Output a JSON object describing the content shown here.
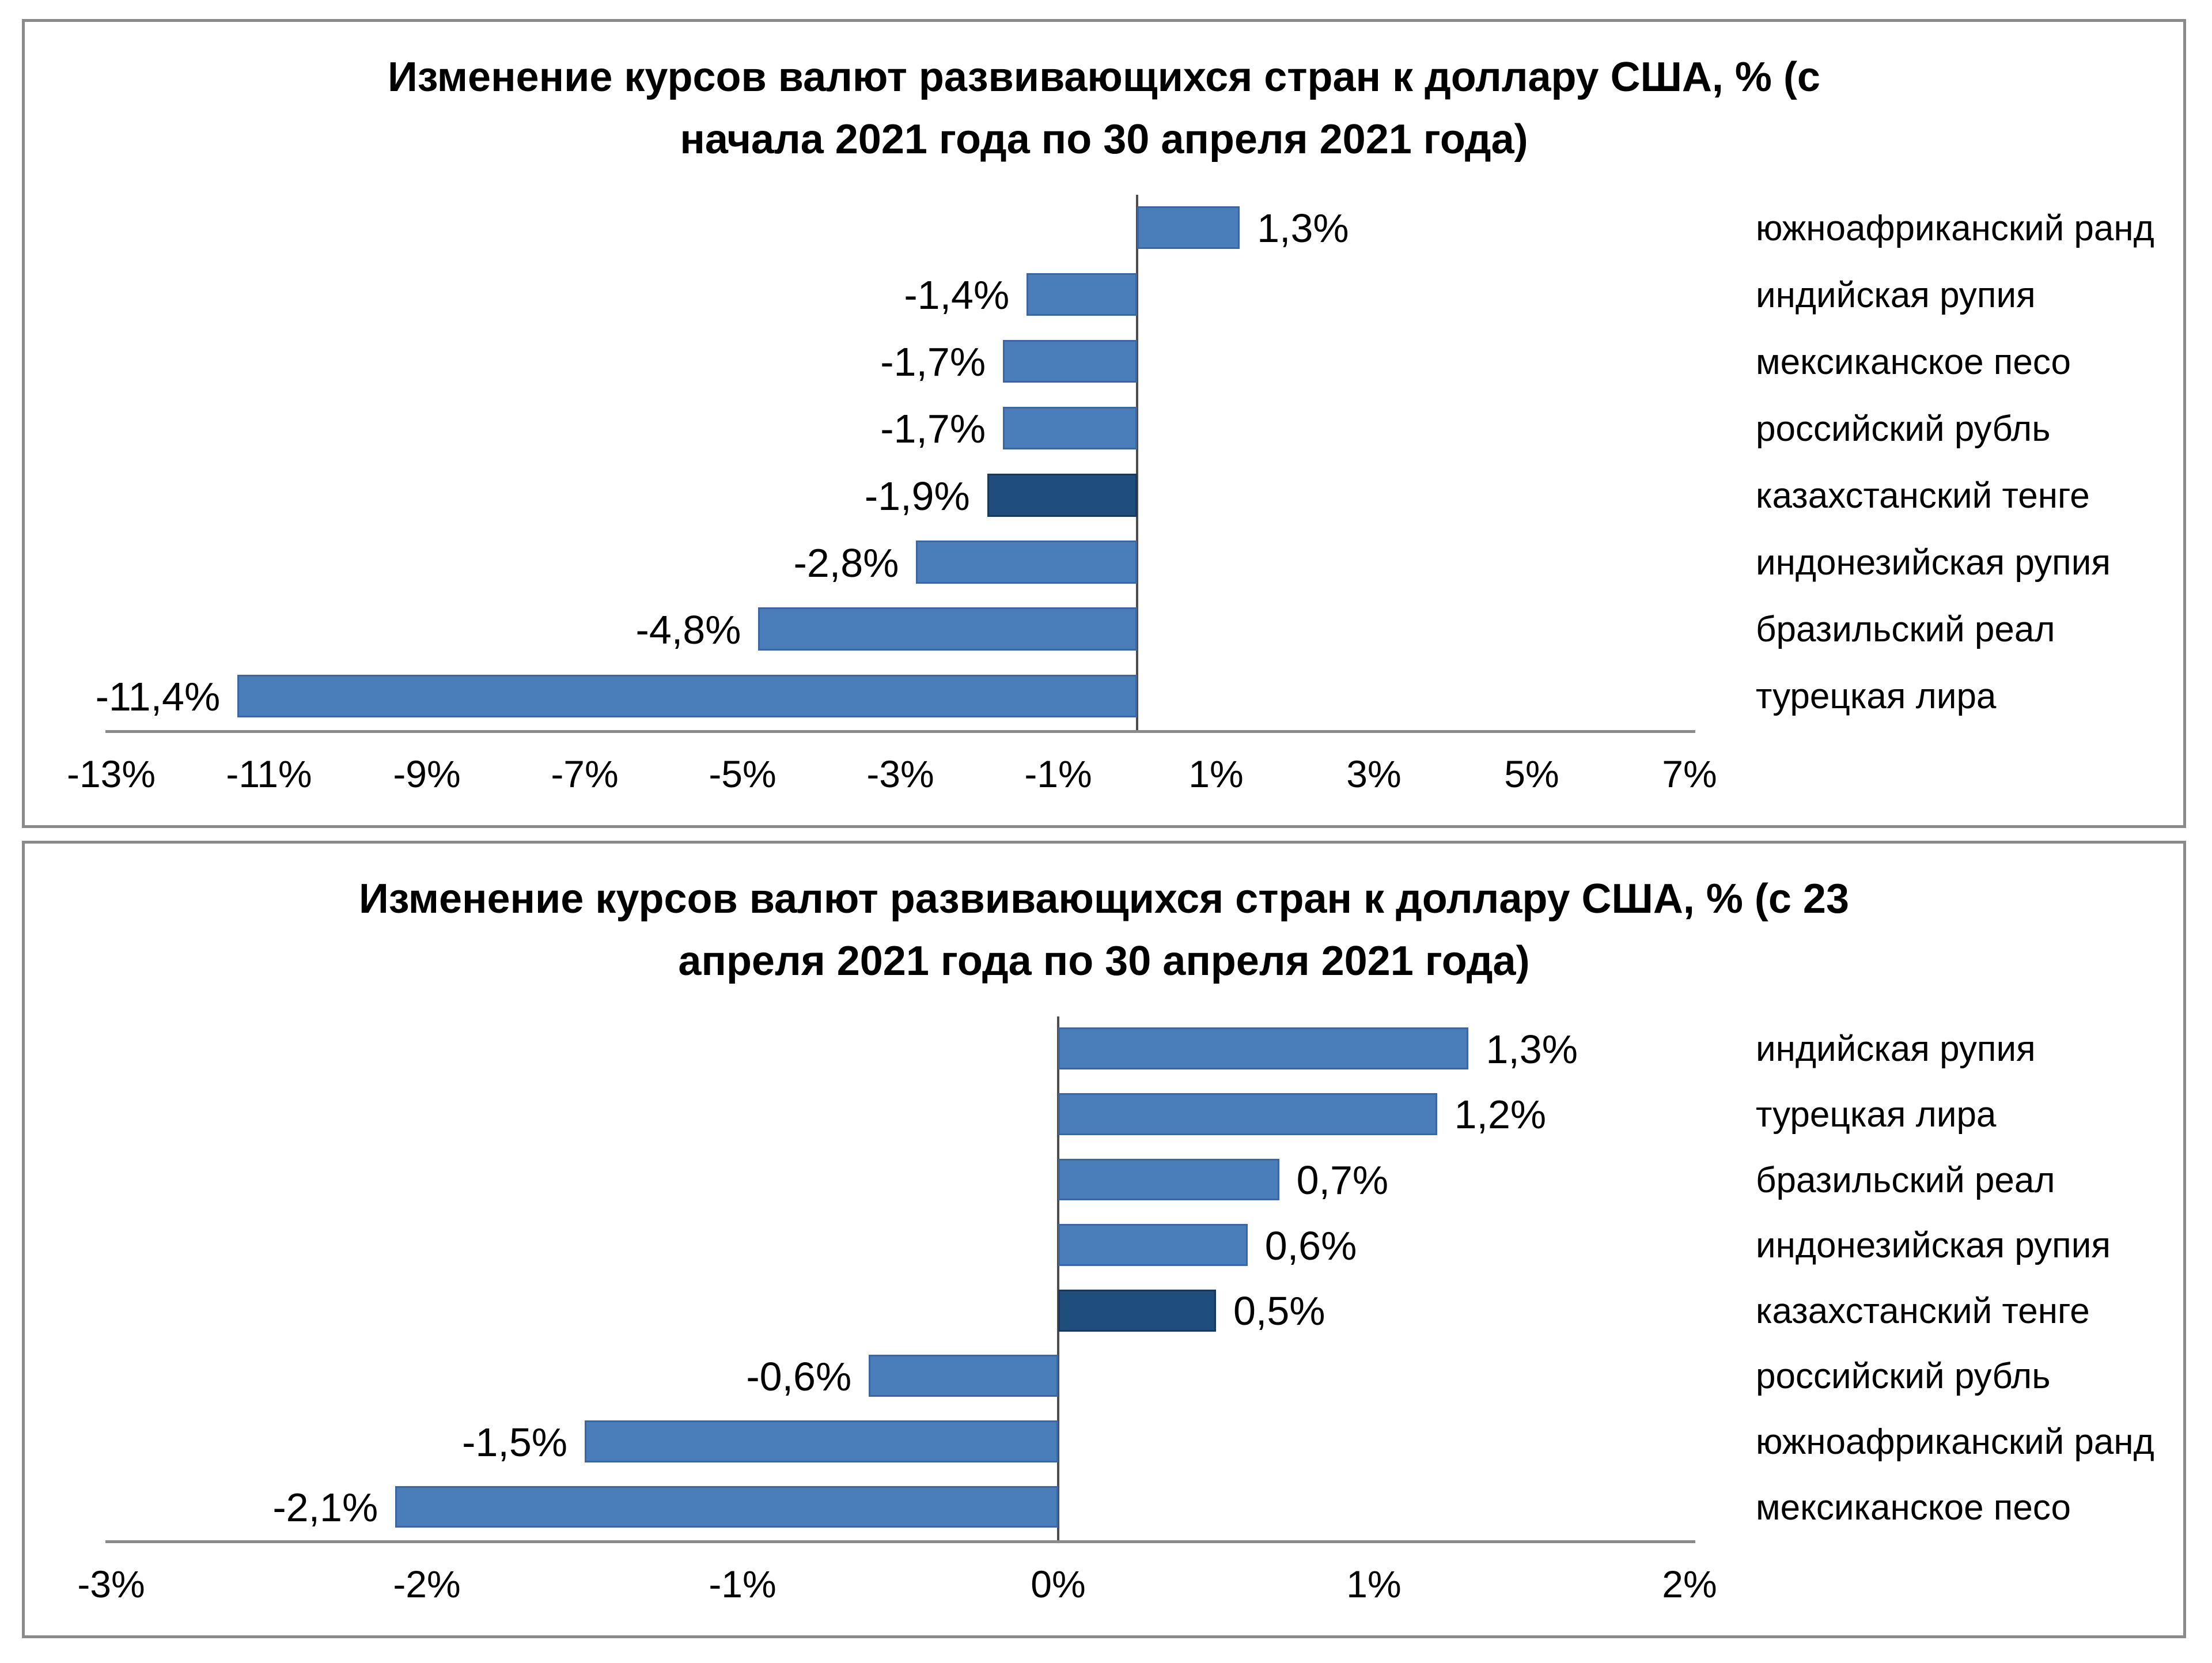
{
  "page": {
    "background_color": "#ffffff",
    "panel_border_color": "#8a8a8a",
    "text_color": "#000000"
  },
  "chart_data": [
    {
      "type": "bar",
      "orientation": "horizontal",
      "title": "Изменение курсов валют развивающихся стран к доллару США, % (с начала 2021 года по 30 апреля 2021 года)",
      "title_lines": [
        "Изменение курсов валют развивающихся стран  к доллару США,  % (с",
        "начала 2021  года по 30  апреля 2021 года)"
      ],
      "categories": [
        "южноафриканский  ранд",
        "индийская рупия",
        "мексиканское песо",
        "российский рубль",
        "казахстанский тенге",
        "индонезийская рупия",
        "бразильский реал",
        "турецкая лира"
      ],
      "values": [
        1.3,
        -1.4,
        -1.7,
        -1.7,
        -1.9,
        -2.8,
        -4.8,
        -11.4
      ],
      "value_labels": [
        "1,3%",
        "-1,4%",
        "-1,7%",
        "-1,7%",
        "-1,9%",
        "-2,8%",
        "-4,8%",
        "-11,4%"
      ],
      "highlight_index": 4,
      "highlight_category": "казахстанский тенге",
      "xlim": [
        -13,
        7
      ],
      "xtick_values": [
        -13,
        -11,
        -9,
        -7,
        -5,
        -3,
        -1,
        1,
        3,
        5,
        7
      ],
      "xtick_labels": [
        "-13%",
        "-11%",
        "-9%",
        "-7%",
        "-5%",
        "-3%",
        "-1%",
        "1%",
        "3%",
        "5%",
        "7%"
      ],
      "bar_color": "#4a7ebb",
      "bar_border_color": "#3a67a3",
      "highlight_color": "#1f4e7d",
      "highlight_border_color": "#17395c",
      "zero_line_color": "#4d4d4d",
      "axis_line_color": "#8a8a8a",
      "grid": "off",
      "legend": "none"
    },
    {
      "type": "bar",
      "orientation": "horizontal",
      "title": "Изменение курсов валют развивающихся стран к доллару США, % (с 23 апреля 2021 года по 30 апреля 2021 года)",
      "title_lines": [
        "Изменение курсов валют развивающихся стран  к доллару США,  % (с 23",
        "апреля 2021 года по 30  апреля 2021 года)"
      ],
      "categories": [
        "индийская рупия",
        "турецкая лира",
        "бразильский реал",
        "индонезийская рупия",
        "казахстанский тенге",
        "российский рубль",
        "южноафриканский  ранд",
        "мексиканское песо"
      ],
      "values": [
        1.3,
        1.2,
        0.7,
        0.6,
        0.5,
        -0.6,
        -1.5,
        -2.1
      ],
      "value_labels": [
        "1,3%",
        "1,2%",
        "0,7%",
        "0,6%",
        "0,5%",
        "-0,6%",
        "-1,5%",
        "-2,1%"
      ],
      "highlight_index": 4,
      "highlight_category": "казахстанский тенге",
      "xlim": [
        -3,
        2
      ],
      "xtick_values": [
        -3,
        -2,
        -1,
        0,
        1,
        2
      ],
      "xtick_labels": [
        "-3%",
        "-2%",
        "-1%",
        "0%",
        "1%",
        "2%"
      ],
      "bar_color": "#4a7ebb",
      "bar_border_color": "#3a67a3",
      "highlight_color": "#1f4e7d",
      "highlight_border_color": "#17395c",
      "zero_line_color": "#4d4d4d",
      "axis_line_color": "#8a8a8a",
      "grid": "off",
      "legend": "none"
    }
  ]
}
